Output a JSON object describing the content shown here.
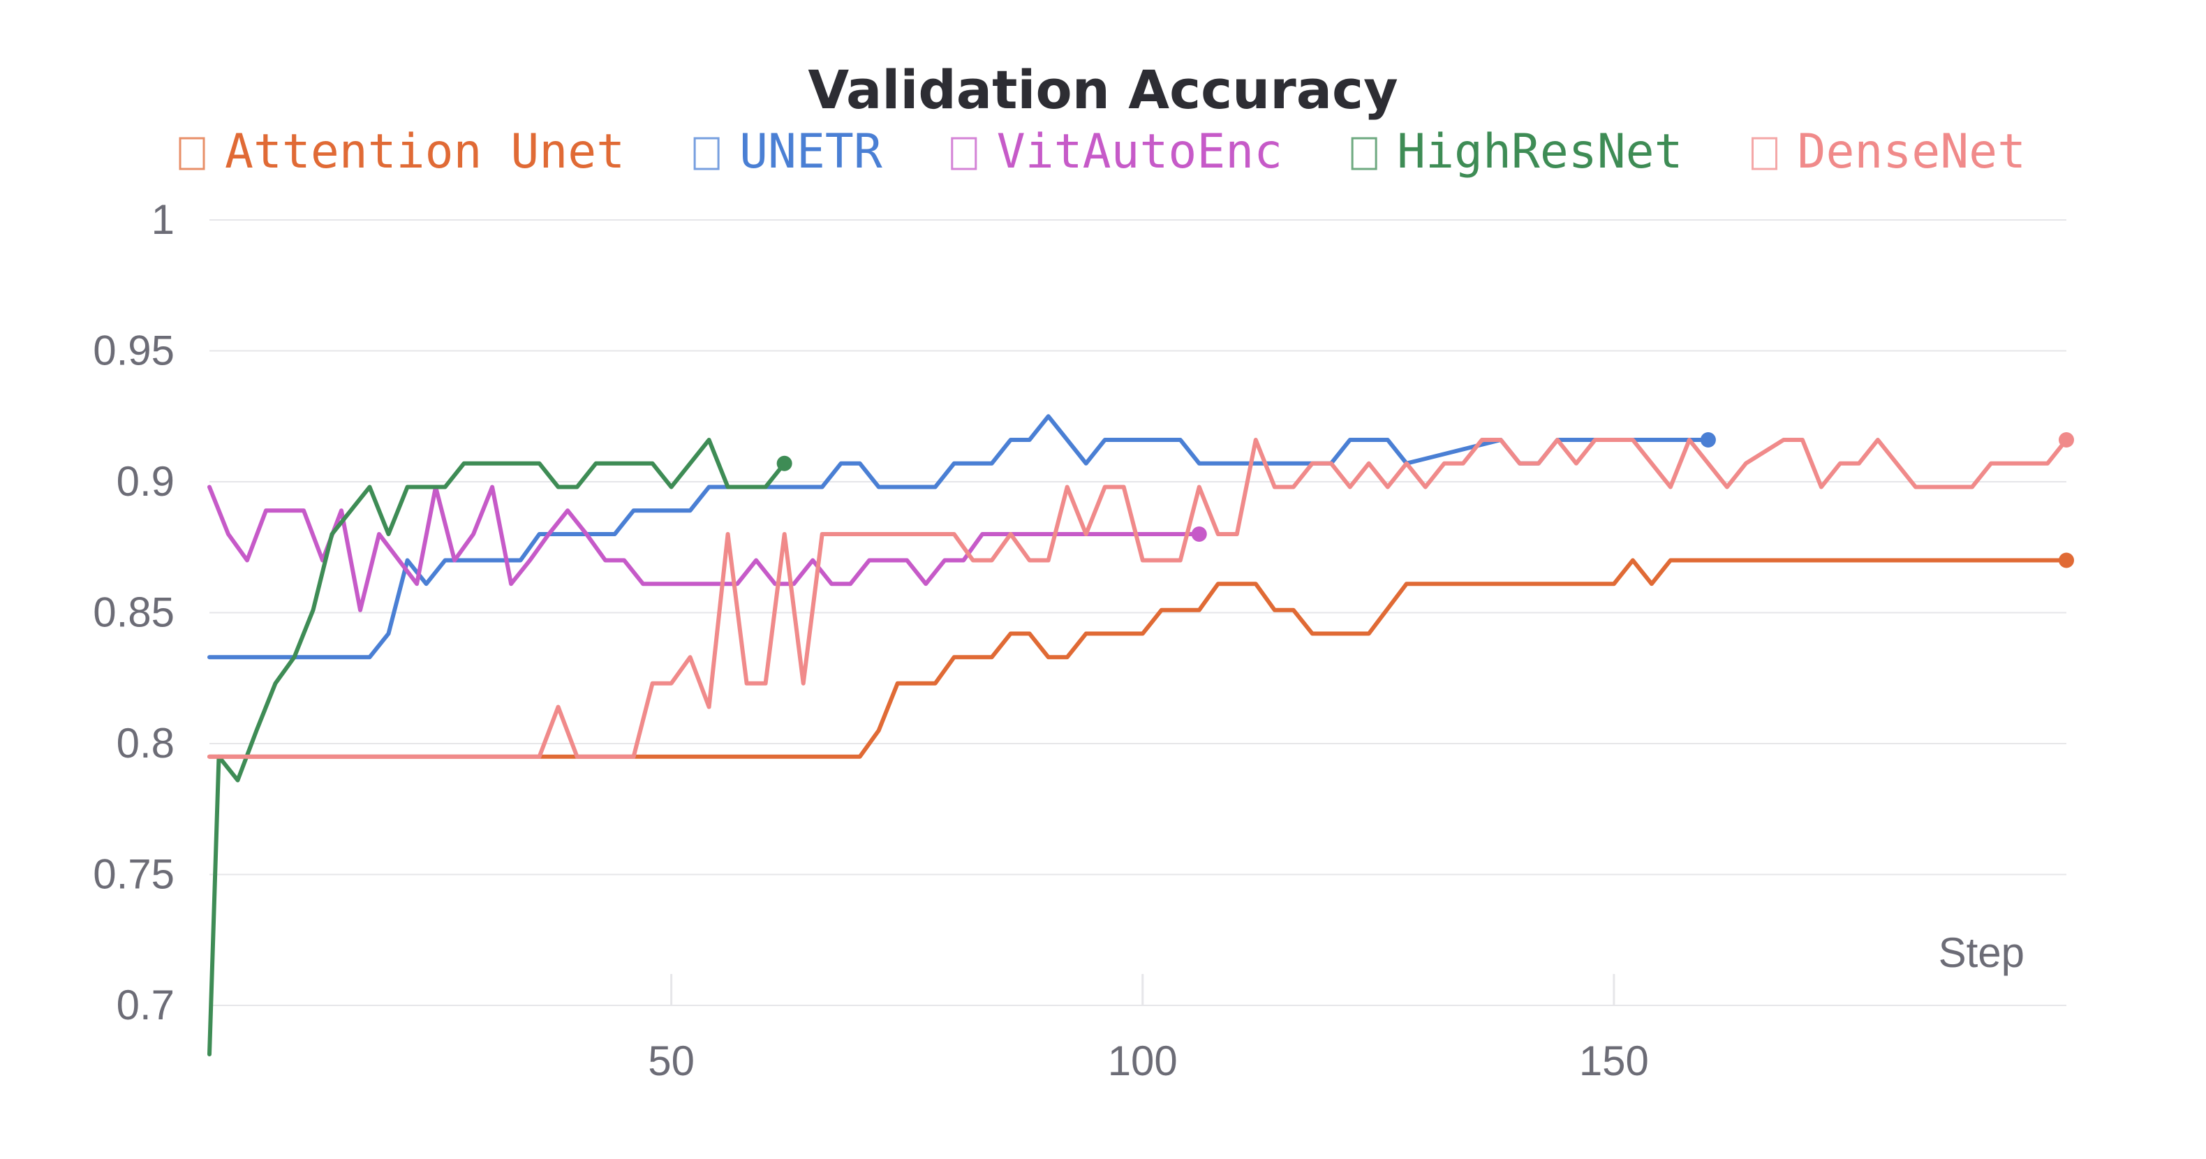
{
  "chart_data": {
    "type": "line",
    "title": "Validation Accuracy",
    "xlabel": "Step",
    "ylabel": "",
    "xlim": [
      1,
      198
    ],
    "ylim": [
      0.7,
      1.0
    ],
    "x_ticks": [
      {
        "value": 50,
        "label": "50"
      },
      {
        "value": 100,
        "label": "100"
      },
      {
        "value": 150,
        "label": "150"
      }
    ],
    "y_ticks": [
      {
        "value": 0.7,
        "label": "0.7"
      },
      {
        "value": 0.75,
        "label": "0.75"
      },
      {
        "value": 0.8,
        "label": "0.8"
      },
      {
        "value": 0.85,
        "label": "0.85"
      },
      {
        "value": 0.9,
        "label": "0.9"
      },
      {
        "value": 0.95,
        "label": "0.95"
      },
      {
        "value": 1.0,
        "label": "1"
      }
    ],
    "grid": "horizontal",
    "legend_position": "top",
    "series": [
      {
        "name": "Attention Unet",
        "color": "#e06a35",
        "points": [
          [
            1,
            0.795
          ],
          [
            20,
            0.795
          ],
          [
            40,
            0.795
          ],
          [
            60,
            0.795
          ],
          [
            70,
            0.795
          ],
          [
            72,
            0.805
          ],
          [
            74,
            0.823
          ],
          [
            78,
            0.823
          ],
          [
            80,
            0.833
          ],
          [
            84,
            0.833
          ],
          [
            86,
            0.842
          ],
          [
            88,
            0.842
          ],
          [
            90,
            0.833
          ],
          [
            92,
            0.833
          ],
          [
            94,
            0.842
          ],
          [
            100,
            0.842
          ],
          [
            102,
            0.851
          ],
          [
            106,
            0.851
          ],
          [
            108,
            0.861
          ],
          [
            112,
            0.861
          ],
          [
            114,
            0.851
          ],
          [
            116,
            0.851
          ],
          [
            118,
            0.842
          ],
          [
            124,
            0.842
          ],
          [
            128,
            0.861
          ],
          [
            134,
            0.861
          ],
          [
            140,
            0.861
          ],
          [
            150,
            0.861
          ],
          [
            152,
            0.87
          ],
          [
            154,
            0.861
          ],
          [
            156,
            0.87
          ],
          [
            170,
            0.87
          ],
          [
            186,
            0.87
          ],
          [
            198,
            0.87
          ]
        ]
      },
      {
        "name": "UNETR",
        "color": "#4a7fd4",
        "points": [
          [
            1,
            0.833
          ],
          [
            12,
            0.833
          ],
          [
            18,
            0.833
          ],
          [
            20,
            0.842
          ],
          [
            22,
            0.87
          ],
          [
            24,
            0.861
          ],
          [
            26,
            0.87
          ],
          [
            34,
            0.87
          ],
          [
            36,
            0.88
          ],
          [
            44,
            0.88
          ],
          [
            46,
            0.889
          ],
          [
            52,
            0.889
          ],
          [
            54,
            0.898
          ],
          [
            66,
            0.898
          ],
          [
            68,
            0.907
          ],
          [
            70,
            0.907
          ],
          [
            72,
            0.898
          ],
          [
            78,
            0.898
          ],
          [
            80,
            0.907
          ],
          [
            84,
            0.907
          ],
          [
            86,
            0.916
          ],
          [
            88,
            0.916
          ],
          [
            90,
            0.925
          ],
          [
            94,
            0.907
          ],
          [
            96,
            0.916
          ],
          [
            104,
            0.916
          ],
          [
            106,
            0.907
          ],
          [
            112,
            0.907
          ],
          [
            120,
            0.907
          ],
          [
            122,
            0.916
          ],
          [
            126,
            0.916
          ],
          [
            128,
            0.907
          ],
          [
            138,
            0.916
          ],
          [
            140,
            0.907
          ],
          [
            142,
            0.907
          ],
          [
            144,
            0.916
          ],
          [
            150,
            0.916
          ],
          [
            160,
            0.916
          ]
        ]
      },
      {
        "name": "VitAutoEnc",
        "color": "#c65ac8",
        "points": [
          [
            1,
            0.898
          ],
          [
            3,
            0.88
          ],
          [
            5,
            0.87
          ],
          [
            7,
            0.889
          ],
          [
            11,
            0.889
          ],
          [
            13,
            0.87
          ],
          [
            15,
            0.889
          ],
          [
            17,
            0.851
          ],
          [
            19,
            0.88
          ],
          [
            23,
            0.861
          ],
          [
            25,
            0.898
          ],
          [
            27,
            0.87
          ],
          [
            29,
            0.88
          ],
          [
            31,
            0.898
          ],
          [
            33,
            0.861
          ],
          [
            35,
            0.87
          ],
          [
            37,
            0.88
          ],
          [
            39,
            0.889
          ],
          [
            41,
            0.88
          ],
          [
            43,
            0.87
          ],
          [
            45,
            0.87
          ],
          [
            47,
            0.861
          ],
          [
            55,
            0.861
          ],
          [
            57,
            0.861
          ],
          [
            59,
            0.87
          ],
          [
            61,
            0.861
          ],
          [
            63,
            0.861
          ],
          [
            65,
            0.87
          ],
          [
            67,
            0.861
          ],
          [
            69,
            0.861
          ],
          [
            71,
            0.87
          ],
          [
            75,
            0.87
          ],
          [
            77,
            0.861
          ],
          [
            79,
            0.87
          ],
          [
            81,
            0.87
          ],
          [
            83,
            0.88
          ],
          [
            106,
            0.88
          ]
        ]
      },
      {
        "name": "HighResNet",
        "color": "#3e8c55",
        "points": [
          [
            1,
            0.67
          ],
          [
            2,
            0.795
          ],
          [
            4,
            0.786
          ],
          [
            6,
            0.805
          ],
          [
            8,
            0.823
          ],
          [
            10,
            0.833
          ],
          [
            12,
            0.851
          ],
          [
            14,
            0.88
          ],
          [
            16,
            0.889
          ],
          [
            18,
            0.898
          ],
          [
            20,
            0.88
          ],
          [
            22,
            0.898
          ],
          [
            26,
            0.898
          ],
          [
            28,
            0.907
          ],
          [
            36,
            0.907
          ],
          [
            38,
            0.898
          ],
          [
            40,
            0.898
          ],
          [
            42,
            0.907
          ],
          [
            48,
            0.907
          ],
          [
            50,
            0.898
          ],
          [
            54,
            0.916
          ],
          [
            56,
            0.898
          ],
          [
            60,
            0.898
          ],
          [
            62,
            0.907
          ]
        ]
      },
      {
        "name": "DenseNet",
        "color": "#f08a8a",
        "points": [
          [
            1,
            0.795
          ],
          [
            36,
            0.795
          ],
          [
            38,
            0.814
          ],
          [
            40,
            0.795
          ],
          [
            46,
            0.795
          ],
          [
            48,
            0.823
          ],
          [
            50,
            0.823
          ],
          [
            52,
            0.833
          ],
          [
            54,
            0.814
          ],
          [
            56,
            0.88
          ],
          [
            58,
            0.823
          ],
          [
            60,
            0.823
          ],
          [
            62,
            0.88
          ],
          [
            64,
            0.823
          ],
          [
            66,
            0.88
          ],
          [
            80,
            0.88
          ],
          [
            82,
            0.87
          ],
          [
            84,
            0.87
          ],
          [
            86,
            0.88
          ],
          [
            88,
            0.87
          ],
          [
            90,
            0.87
          ],
          [
            92,
            0.898
          ],
          [
            94,
            0.88
          ],
          [
            96,
            0.898
          ],
          [
            98,
            0.898
          ],
          [
            100,
            0.87
          ],
          [
            104,
            0.87
          ],
          [
            106,
            0.898
          ],
          [
            108,
            0.88
          ],
          [
            110,
            0.88
          ],
          [
            112,
            0.916
          ],
          [
            114,
            0.898
          ],
          [
            116,
            0.898
          ],
          [
            118,
            0.907
          ],
          [
            120,
            0.907
          ],
          [
            122,
            0.898
          ],
          [
            124,
            0.907
          ],
          [
            126,
            0.898
          ],
          [
            128,
            0.907
          ],
          [
            130,
            0.898
          ],
          [
            132,
            0.907
          ],
          [
            134,
            0.907
          ],
          [
            136,
            0.916
          ],
          [
            138,
            0.916
          ],
          [
            140,
            0.907
          ],
          [
            142,
            0.907
          ],
          [
            144,
            0.916
          ],
          [
            146,
            0.907
          ],
          [
            148,
            0.916
          ],
          [
            152,
            0.916
          ],
          [
            156,
            0.898
          ],
          [
            158,
            0.916
          ],
          [
            162,
            0.898
          ],
          [
            164,
            0.907
          ],
          [
            168,
            0.916
          ],
          [
            170,
            0.916
          ],
          [
            172,
            0.898
          ],
          [
            174,
            0.907
          ],
          [
            176,
            0.907
          ],
          [
            178,
            0.916
          ],
          [
            182,
            0.898
          ],
          [
            188,
            0.898
          ],
          [
            190,
            0.907
          ],
          [
            196,
            0.907
          ],
          [
            198,
            0.916
          ]
        ]
      }
    ]
  }
}
